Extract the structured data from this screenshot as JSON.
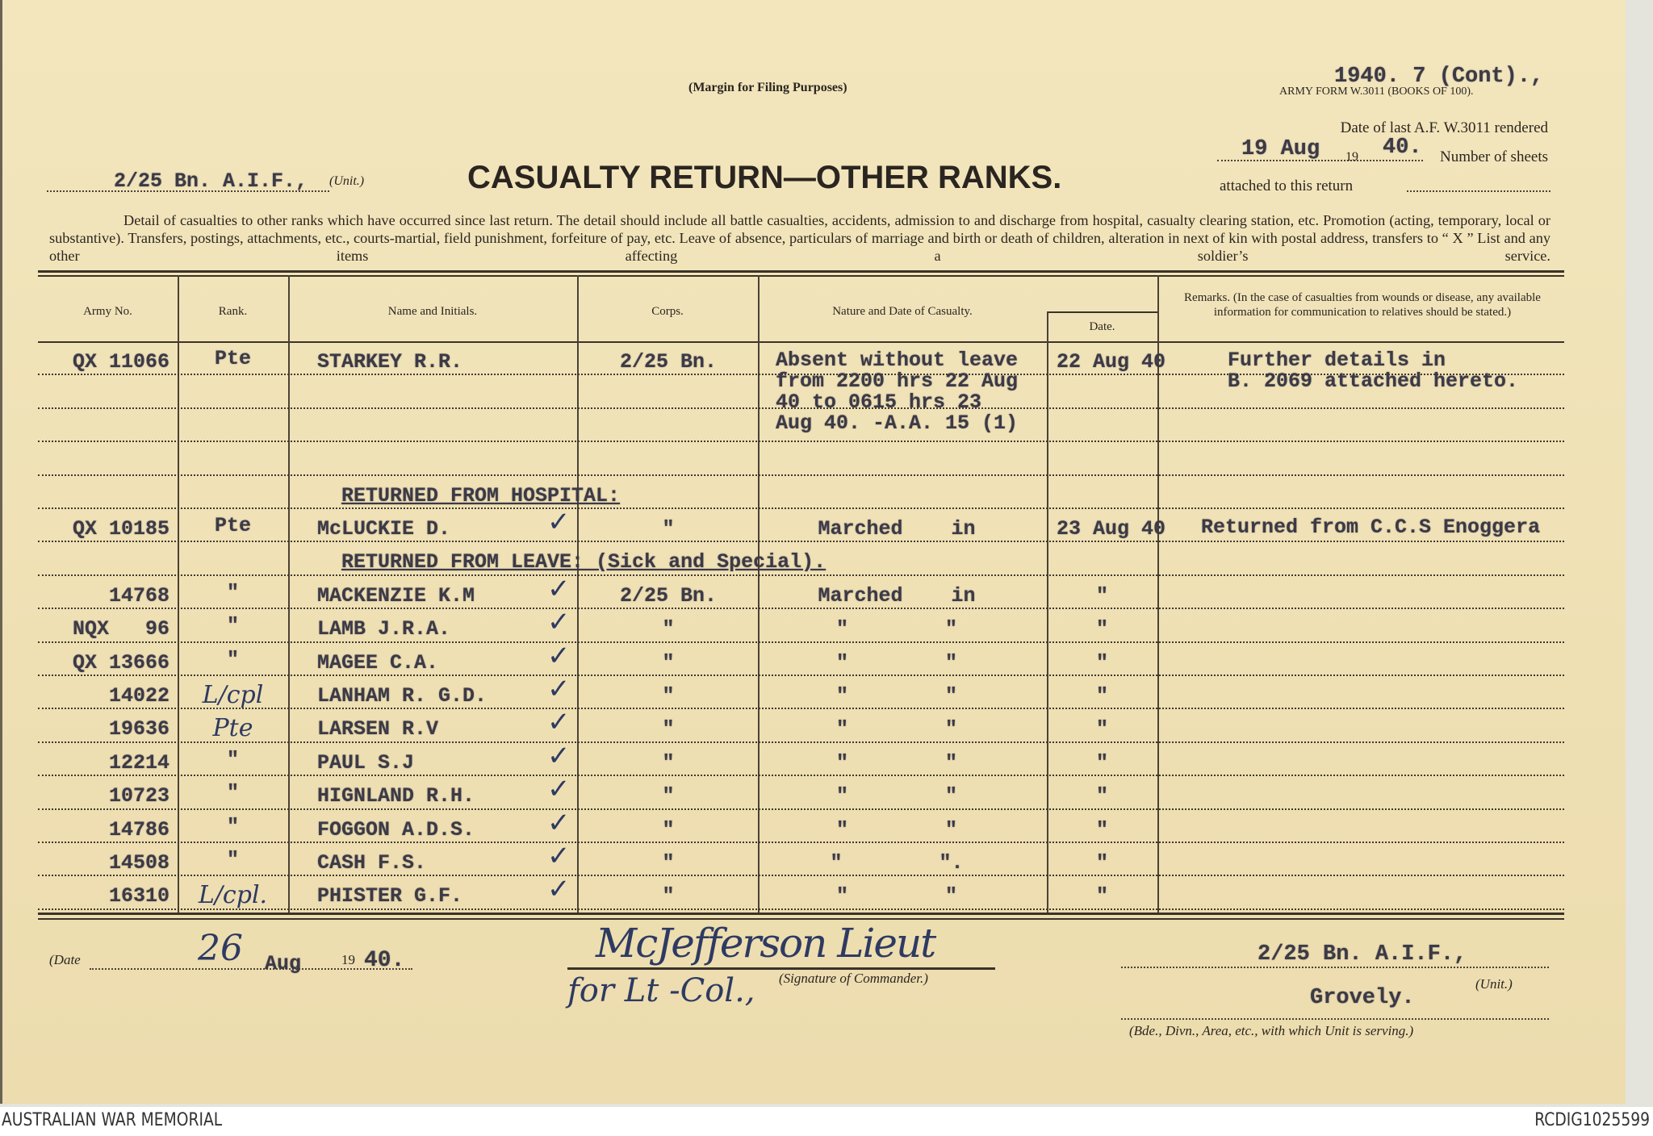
{
  "header": {
    "margin_note": "(Margin for Filing Purposes)",
    "reference_typed": "1940. 7 (Cont).,",
    "form_id": "ARMY FORM W.3011 (BOOKS OF 100).",
    "last_rendered_label": "Date of last A.F. W.3011 rendered",
    "last_rendered_day": "19 Aug",
    "year_prefix": "19",
    "last_rendered_year": "40.",
    "sheets_label": "Number of sheets",
    "attached_label": "attached to this return",
    "unit_value": "2/25 Bn. A.I.F.,",
    "unit_label": "(Unit.)",
    "title": "CASUALTY RETURN—OTHER RANKS.",
    "instructions": "Detail of casualties to other ranks which have occurred since last return. The detail should include all battle casualties, accidents, admission to and discharge from hospital, casualty clearing station, etc. Promotion (acting, temporary, local or substantive). Transfers, postings, attachments, etc., courts-martial, field punishment, forfeiture of pay, etc. Leave of absence, particulars of marriage and birth or death of children, alteration in next of kin with postal address, transfers to “ X ” List and any other items affecting a soldier’s service."
  },
  "table": {
    "columns": [
      "Army No.",
      "Rank.",
      "Name and Initials.",
      "Corps.",
      "Nature and Date of Casualty.",
      "Date.",
      "Remarks. (In the case of casualties from wounds or disease, any available information for communication to relatives should be stated.)"
    ],
    "rows": [
      {
        "army_no": "QX 11066",
        "rank": "Pte",
        "name": "STARKEY R.R.",
        "corps": "2/25 Bn.",
        "nature": "Absent without leave\nfrom 2200 hrs 22 Aug\n40 to 0615 hrs 23\nAug 40. -A.A. 15 (1)",
        "date": "22 Aug 40",
        "remarks": "Further details in\nB. 2069 attached hereto."
      },
      {},
      {},
      {},
      {
        "section": "RETURNED FROM HOSPITAL:"
      },
      {
        "army_no": "QX 10185",
        "rank": "Pte",
        "name": "McLUCKIE D.",
        "check": "✓",
        "corps": "\"",
        "nature": "Marched    in",
        "date": "23 Aug 40",
        "remarks": "Returned from C.C.S Enoggera"
      },
      {
        "section": "RETURNED FROM LEAVE: (Sick and Special)."
      },
      {
        "army_no": "14768",
        "rank": "\"",
        "name": "MACKENZIE K.M",
        "check": "✓",
        "corps": "2/25 Bn.",
        "nature": "Marched    in",
        "date": "\""
      },
      {
        "army_no": "NQX   96",
        "rank": "\"",
        "name": "LAMB J.R.A.",
        "check": "✓",
        "corps": "\"",
        "nature": "\"        \"",
        "date": "\""
      },
      {
        "army_no": "QX 13666",
        "rank": "\"",
        "name": "MAGEE C.A.",
        "check": "✓",
        "corps": "\"",
        "nature": "\"        \"",
        "date": "\""
      },
      {
        "army_no": "14022",
        "rank": "L/cpl",
        "rank_handwritten": true,
        "name": "LANHAM R. G.D.",
        "check": "✓",
        "corps": "\"",
        "nature": "\"        \"",
        "date": "\""
      },
      {
        "army_no": "19636",
        "rank": "Pte",
        "rank_handwritten": true,
        "name": "LARSEN R.V",
        "check": "✓",
        "corps": "\"",
        "nature": "\"        \"",
        "date": "\""
      },
      {
        "army_no": "12214",
        "rank": "\"",
        "name": "PAUL S.J",
        "check": "✓",
        "corps": "\"",
        "nature": "\"        \"",
        "date": "\""
      },
      {
        "army_no": "10723",
        "rank": "\"",
        "name": "HIGNLAND R.H.",
        "check": "✓",
        "corps": "\"",
        "nature": "\"        \"",
        "date": "\""
      },
      {
        "army_no": "14786",
        "rank": "\"",
        "name": "FOGGON A.D.S.",
        "check": "✓",
        "corps": "\"",
        "nature": "\"        \"",
        "date": "\""
      },
      {
        "army_no": "14508",
        "rank": "\"",
        "name": "CASH F.S.",
        "check": "✓",
        "corps": "\"",
        "nature": "\"        \".",
        "date": "\""
      },
      {
        "army_no": "16310",
        "rank": "L/cpl.",
        "rank_handwritten": true,
        "name": "PHISTER G.F.",
        "check": "✓",
        "corps": "\"",
        "nature": "\"        \"",
        "date": "\""
      }
    ]
  },
  "footer": {
    "date_label": "(Date",
    "date_day": "26",
    "date_month": "Aug",
    "year_prefix": "19",
    "date_year": "40.",
    "signature": "McJefferson Lieut",
    "for_co": "for Lt -Col.,",
    "signature_label": "(Signature of Commander.)",
    "unit_value": "2/25 Bn. A.I.F.,",
    "unit_label": "(Unit.)",
    "area_value": "Grovely.",
    "area_label": "(Bde., Divn., Area, etc., with which Unit is serving.)"
  },
  "caption": {
    "left": "AUSTRALIAN WAR MEMORIAL",
    "right": "RCDIG1025599"
  }
}
